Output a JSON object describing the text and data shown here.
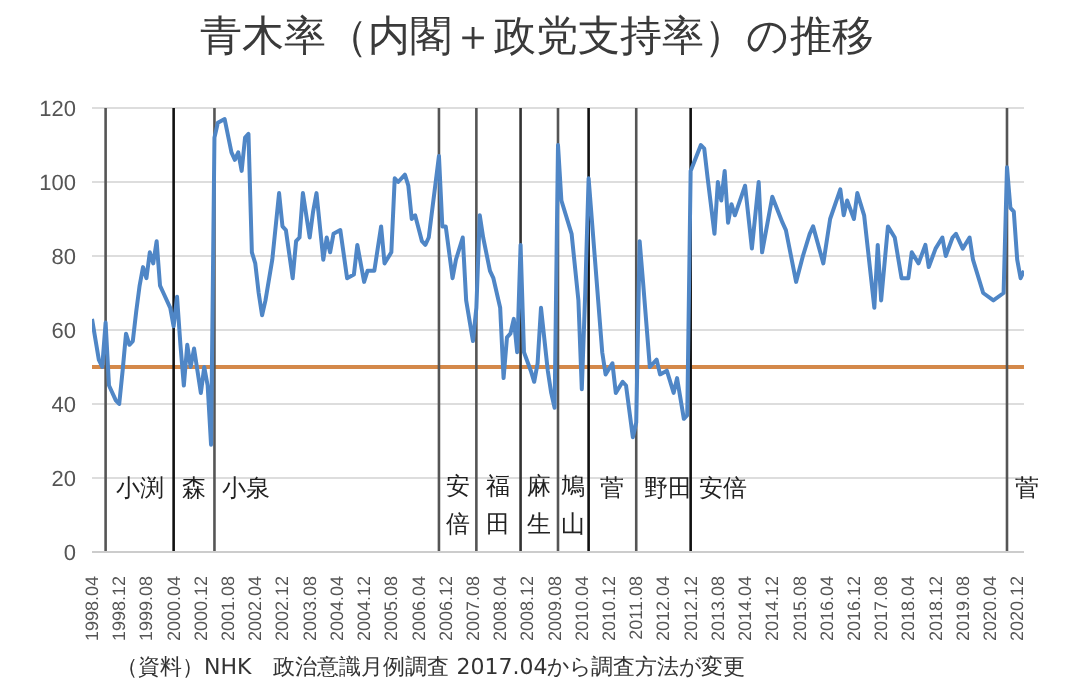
{
  "chart_data": {
    "type": "line",
    "title": "青木率（内閣＋政党支持率）の推移",
    "annotations": [
      "（資料）NHK　政治意識月例調査 2017.04から調査方法が変更"
    ],
    "xlim": [
      "1998-04",
      "2021-02"
    ],
    "ylim": [
      0,
      120
    ],
    "yticks": [
      0,
      20,
      40,
      60,
      80,
      100,
      120
    ],
    "xticks": [
      {
        "value": "1998-04",
        "label": "1998.04"
      },
      {
        "value": "1998-12",
        "label": "1998.12"
      },
      {
        "value": "1999-08",
        "label": "1999.08"
      },
      {
        "value": "2000-04",
        "label": "2000.04"
      },
      {
        "value": "2000-12",
        "label": "2000.12"
      },
      {
        "value": "2001-08",
        "label": "2001.08"
      },
      {
        "value": "2002-04",
        "label": "2002.04"
      },
      {
        "value": "2002-12",
        "label": "2002.12"
      },
      {
        "value": "2003-08",
        "label": "2003.08"
      },
      {
        "value": "2004-04",
        "label": "2004.04"
      },
      {
        "value": "2004-12",
        "label": "2004.12"
      },
      {
        "value": "2005-08",
        "label": "2005.08"
      },
      {
        "value": "2006-04",
        "label": "2006.04"
      },
      {
        "value": "2006-12",
        "label": "2006.12"
      },
      {
        "value": "2007-08",
        "label": "2007.08"
      },
      {
        "value": "2008-04",
        "label": "2008.04"
      },
      {
        "value": "2008-12",
        "label": "2008.12"
      },
      {
        "value": "2009-08",
        "label": "2009.08"
      },
      {
        "value": "2010-04",
        "label": "2010.04"
      },
      {
        "value": "2010-12",
        "label": "2010.12"
      },
      {
        "value": "2011-08",
        "label": "2011.08"
      },
      {
        "value": "2012-04",
        "label": "2012.04"
      },
      {
        "value": "2012-12",
        "label": "2012.12"
      },
      {
        "value": "2013-08",
        "label": "2013.08"
      },
      {
        "value": "2014-04",
        "label": "2014.04"
      },
      {
        "value": "2014-12",
        "label": "2014.12"
      },
      {
        "value": "2015-08",
        "label": "2015.08"
      },
      {
        "value": "2016-04",
        "label": "2016.04"
      },
      {
        "value": "2016-12",
        "label": "2016.12"
      },
      {
        "value": "2017-08",
        "label": "2017.08"
      },
      {
        "value": "2018-04",
        "label": "2018.04"
      },
      {
        "value": "2018-12",
        "label": "2018.12"
      },
      {
        "value": "2019-08",
        "label": "2019.08"
      },
      {
        "value": "2020-04",
        "label": "2020.04"
      },
      {
        "value": "2020-12",
        "label": "2020.12"
      }
    ],
    "grid": "y",
    "marker": "none",
    "line_style": "solid",
    "series": [
      {
        "color": "#4f86c6",
        "x": [
          "1998-04",
          "1998-06",
          "1998-07",
          "1998-08",
          "1998-09",
          "1998-11",
          "1998-12",
          "1999-01",
          "1999-02",
          "1999-03",
          "1999-04",
          "1999-05",
          "1999-06",
          "1999-07",
          "1999-08",
          "1999-09",
          "1999-10",
          "1999-11",
          "1999-12",
          "2000-01",
          "2000-03",
          "2000-04",
          "2000-05",
          "2000-06",
          "2000-07",
          "2000-08",
          "2000-09",
          "2000-10",
          "2000-11",
          "2000-12",
          "2001-01",
          "2001-02",
          "2001-03",
          "2001-04",
          "2001-05",
          "2001-07",
          "2001-09",
          "2001-10",
          "2001-11",
          "2001-12",
          "2002-01",
          "2002-02",
          "2002-03",
          "2002-04",
          "2002-05",
          "2002-06",
          "2002-07",
          "2002-09",
          "2002-11",
          "2002-12",
          "2003-01",
          "2003-03",
          "2003-04",
          "2003-05",
          "2003-06",
          "2003-08",
          "2003-09",
          "2003-10",
          "2003-12",
          "2004-01",
          "2004-02",
          "2004-03",
          "2004-05",
          "2004-07",
          "2004-09",
          "2004-10",
          "2004-12",
          "2005-01",
          "2005-03",
          "2005-05",
          "2005-06",
          "2005-08",
          "2005-09",
          "2005-10",
          "2005-12",
          "2006-01",
          "2006-02",
          "2006-03",
          "2006-05",
          "2006-06",
          "2006-07",
          "2006-10",
          "2006-11",
          "2006-12",
          "2007-02",
          "2007-03",
          "2007-05",
          "2007-06",
          "2007-08",
          "2007-09",
          "2007-10",
          "2007-11",
          "2008-01",
          "2008-02",
          "2008-04",
          "2008-05",
          "2008-06",
          "2008-07",
          "2008-08",
          "2008-09",
          "2008-10",
          "2008-11",
          "2009-01",
          "2009-02",
          "2009-03",
          "2009-04",
          "2009-06",
          "2009-07",
          "2009-08",
          "2009-09",
          "2009-10",
          "2010-01",
          "2010-03",
          "2010-04",
          "2010-05",
          "2010-06",
          "2010-10",
          "2010-11",
          "2011-01",
          "2011-02",
          "2011-04",
          "2011-05",
          "2011-07",
          "2011-08",
          "2011-09",
          "2011-10",
          "2011-12",
          "2012-02",
          "2012-03",
          "2012-05",
          "2012-07",
          "2012-08",
          "2012-10",
          "2012-11",
          "2012-12",
          "2013-03",
          "2013-04",
          "2013-05",
          "2013-07",
          "2013-08",
          "2013-09",
          "2013-10",
          "2013-11",
          "2013-12",
          "2014-01",
          "2014-04",
          "2014-06",
          "2014-08",
          "2014-09",
          "2014-12",
          "2015-03",
          "2015-04",
          "2015-07",
          "2015-09",
          "2015-11",
          "2015-12",
          "2016-03",
          "2016-05",
          "2016-08",
          "2016-09",
          "2016-10",
          "2016-12",
          "2017-01",
          "2017-03",
          "2017-06",
          "2017-07",
          "2017-08",
          "2017-10",
          "2017-12",
          "2018-02",
          "2018-04",
          "2018-05",
          "2018-07",
          "2018-09",
          "2018-10",
          "2018-12",
          "2019-02",
          "2019-03",
          "2019-05",
          "2019-06",
          "2019-08",
          "2019-10",
          "2019-11",
          "2020-02",
          "2020-05",
          "2020-08",
          "2020-09",
          "2020-10",
          "2020-11",
          "2020-12",
          "2021-01",
          "2021-02"
        ],
        "values": [
          63,
          52,
          50,
          62,
          45,
          41,
          40,
          49,
          59,
          56,
          57,
          65,
          72,
          77,
          74,
          81,
          78,
          84,
          72,
          70,
          66,
          61,
          69,
          56,
          45,
          56,
          50,
          55,
          49,
          43,
          50,
          45,
          29,
          112,
          116,
          117,
          108,
          106,
          108,
          103,
          112,
          113,
          81,
          78,
          70,
          64,
          68,
          79,
          97,
          88,
          87,
          74,
          84,
          85,
          97,
          85,
          92,
          97,
          79,
          85,
          81,
          86,
          87,
          74,
          75,
          83,
          73,
          76,
          76,
          88,
          78,
          81,
          101,
          100,
          102,
          99,
          90,
          91,
          84,
          83,
          85,
          107,
          88,
          88,
          74,
          79,
          85,
          68,
          57,
          66,
          91,
          85,
          76,
          74,
          66,
          47,
          58,
          59,
          63,
          54,
          83,
          54,
          49,
          46,
          51,
          66,
          49,
          43,
          39,
          110,
          95,
          86,
          68,
          44,
          70,
          101,
          54,
          48,
          51,
          43,
          46,
          45,
          31,
          35,
          84,
          73,
          50,
          52,
          48,
          49,
          43,
          47,
          36,
          37,
          103,
          110,
          109,
          101,
          86,
          100,
          95,
          103,
          89,
          94,
          91,
          99,
          82,
          100,
          81,
          96,
          89,
          87,
          73,
          80,
          86,
          88,
          78,
          90,
          98,
          91,
          95,
          90,
          97,
          91,
          66,
          83,
          68,
          88,
          85,
          74,
          74,
          81,
          78,
          83,
          77,
          82,
          85,
          80,
          85,
          86,
          82,
          85,
          79,
          70,
          68,
          70,
          104,
          93,
          92,
          79,
          74,
          76
        ]
      }
    ],
    "ref_lines": [
      {
        "axis": "y",
        "value": 50,
        "color": "#d4894a"
      },
      {
        "axis": "x",
        "value": "1998-08",
        "label": "小渕",
        "color": "#555555"
      },
      {
        "axis": "x",
        "value": "2000-04",
        "label": "森",
        "color": "#111111"
      },
      {
        "axis": "x",
        "value": "2001-04",
        "label": "小泉",
        "color": "#555555"
      },
      {
        "axis": "x",
        "value": "2006-10",
        "label": "安倍",
        "color": "#555555"
      },
      {
        "axis": "x",
        "value": "2007-09",
        "label": "福田",
        "color": "#555555"
      },
      {
        "axis": "x",
        "value": "2008-10",
        "label": "麻生",
        "color": "#333333"
      },
      {
        "axis": "x",
        "value": "2009-09",
        "label": "鳩山",
        "color": "#555555"
      },
      {
        "axis": "x",
        "value": "2010-06",
        "label": "菅",
        "color": "#111111"
      },
      {
        "axis": "x",
        "value": "2011-08",
        "label": "野田",
        "color": "#555555"
      },
      {
        "axis": "x",
        "value": "2012-12",
        "label": "安倍",
        "color": "#111111"
      },
      {
        "axis": "x",
        "value": "2020-09",
        "label": "菅",
        "color": "#555555"
      }
    ]
  }
}
